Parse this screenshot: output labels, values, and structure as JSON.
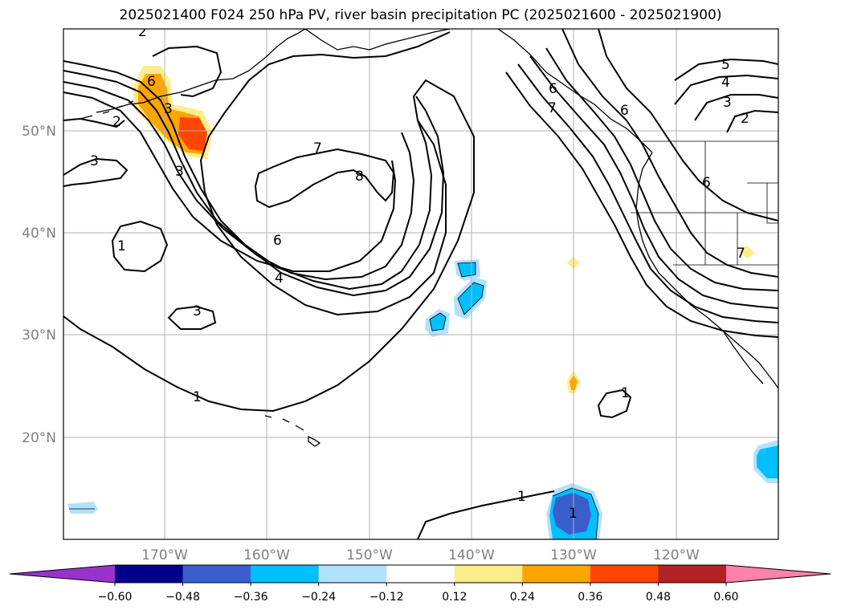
{
  "title": "2025021400 F024 250 hPa PV, river basin precipitation PC (2025021600 - 2025021900)",
  "latitude_labels": [
    "50°N",
    "40°N",
    "30°N",
    "20°N"
  ],
  "longitude_labels": [
    "170°W",
    "160°W",
    "150°W",
    "140°W",
    "130°W",
    "120°W"
  ],
  "colorbar": {
    "tick_labels": [
      "−0.60",
      "−0.48",
      "−0.36",
      "−0.24",
      "−0.12",
      "0.12",
      "0.24",
      "0.36",
      "0.48",
      "0.60"
    ],
    "colors": [
      "#9932cc",
      "#00008b",
      "#3a5fcd",
      "#00bfff",
      "#b0e2ff",
      "#ffffff",
      "#ffec8b",
      "#ffa500",
      "#ff4500",
      "#b22222",
      "#ff82ab"
    ]
  },
  "contour_labels": {
    "c1": "1",
    "c2": "2",
    "c3": "3",
    "c4": "4",
    "c5": "5",
    "c6": "6",
    "c7": "7",
    "c8": "8",
    "c9": "1",
    "c10": "7",
    "c11": "3",
    "c12": "2",
    "c13": "3",
    "c14": "3",
    "c15": "6",
    "c16": "4",
    "c17": "6",
    "c18": "1",
    "c19": "1",
    "c20": "1",
    "c21": "6",
    "c22": "7",
    "c23": "6",
    "c24": "2",
    "c25": "3"
  }
}
